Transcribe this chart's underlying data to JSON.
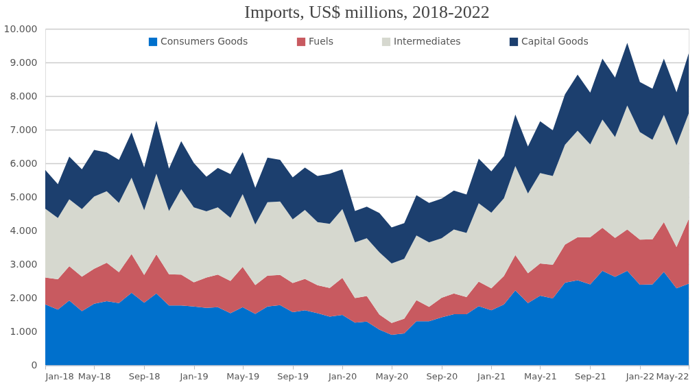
{
  "chart_data": {
    "type": "area",
    "title": "Imports, US$ millions, 2018-2022",
    "stacked": true,
    "x": [
      "2018-01",
      "2018-02",
      "2018-03",
      "2018-04",
      "2018-05",
      "2018-06",
      "2018-07",
      "2018-08",
      "2018-09",
      "2018-10",
      "2018-11",
      "2018-12",
      "2019-01",
      "2019-02",
      "2019-03",
      "2019-04",
      "2019-05",
      "2019-06",
      "2019-07",
      "2019-08",
      "2019-09",
      "2019-10",
      "2019-11",
      "2019-12",
      "2020-01",
      "2020-02",
      "2020-03",
      "2020-04",
      "2020-05",
      "2020-06",
      "2020-07",
      "2020-08",
      "2020-09",
      "2020-10",
      "2020-11",
      "2020-12",
      "2021-01",
      "2021-02",
      "2021-03",
      "2021-04",
      "2021-05",
      "2021-06",
      "2021-07",
      "2021-08",
      "2021-09",
      "2021-10",
      "2021-11",
      "2021-12",
      "2022-01",
      "2022-02",
      "2022-03",
      "2022-04",
      "2022-05"
    ],
    "series": [
      {
        "name": "Consumers Goods",
        "color": "#0070cc",
        "values": [
          1800,
          1650,
          1920,
          1600,
          1820,
          1900,
          1840,
          2150,
          1850,
          2130,
          1770,
          1770,
          1740,
          1700,
          1720,
          1540,
          1720,
          1520,
          1740,
          1780,
          1570,
          1630,
          1540,
          1440,
          1490,
          1260,
          1290,
          1050,
          900,
          940,
          1300,
          1300,
          1420,
          1510,
          1510,
          1750,
          1630,
          1800,
          2220,
          1840,
          2060,
          1980,
          2450,
          2520,
          2400,
          2800,
          2620,
          2800,
          2390,
          2400,
          2770,
          2280,
          2420
        ]
      },
      {
        "name": "Fuels",
        "color": "#c85a60",
        "values": [
          800,
          900,
          1020,
          1030,
          1040,
          1140,
          920,
          1150,
          830,
          1160,
          930,
          920,
          720,
          900,
          970,
          960,
          1200,
          860,
          920,
          900,
          870,
          930,
          830,
          850,
          1100,
          730,
          760,
          450,
          350,
          440,
          630,
          430,
          580,
          620,
          510,
          730,
          650,
          850,
          1050,
          890,
          960,
          1000,
          1130,
          1280,
          1400,
          1280,
          1160,
          1230,
          1340,
          1340,
          1480,
          1230,
          1920
        ]
      },
      {
        "name": "Intermediates",
        "color": "#d6d8cf",
        "values": [
          2050,
          1820,
          1990,
          2010,
          2150,
          2130,
          2060,
          2270,
          1920,
          2400,
          1880,
          2540,
          2230,
          1970,
          2000,
          1880,
          2160,
          1800,
          2180,
          2180,
          1890,
          2050,
          1880,
          1910,
          2050,
          1660,
          1720,
          1850,
          1770,
          1780,
          1920,
          1920,
          1770,
          1900,
          1910,
          2330,
          2250,
          2310,
          2650,
          2370,
          2690,
          2640,
          2970,
          3170,
          2760,
          3220,
          3000,
          3690,
          3200,
          2960,
          3190,
          3020,
          3140
        ]
      },
      {
        "name": "Capital Goods",
        "color": "#1c3f6e",
        "values": [
          1150,
          1010,
          1270,
          1180,
          1390,
          1150,
          1280,
          1350,
          1280,
          1580,
          1260,
          1430,
          1320,
          1030,
          1170,
          1300,
          1250,
          1090,
          1330,
          1240,
          1250,
          1260,
          1370,
          1490,
          1180,
          930,
          940,
          1170,
          1070,
          1060,
          1200,
          1170,
          1180,
          1160,
          1140,
          1330,
          1230,
          1260,
          1530,
          1400,
          1540,
          1360,
          1500,
          1670,
          1540,
          1810,
          1770,
          1860,
          1490,
          1520,
          1670,
          1580,
          1790
        ]
      }
    ],
    "xlim": [
      "2018-01",
      "2022-05"
    ],
    "xticks": [
      {
        "value": "2018-01",
        "label": "Jan-18"
      },
      {
        "value": "2018-05",
        "label": "May-18"
      },
      {
        "value": "2018-09",
        "label": "Sep-18"
      },
      {
        "value": "2019-01",
        "label": "Jan-19"
      },
      {
        "value": "2019-05",
        "label": "May-19"
      },
      {
        "value": "2019-09",
        "label": "Sep-19"
      },
      {
        "value": "2020-01",
        "label": "Jan-20"
      },
      {
        "value": "2020-05",
        "label": "May-20"
      },
      {
        "value": "2020-09",
        "label": "Sep-20"
      },
      {
        "value": "2021-01",
        "label": "Jan-21"
      },
      {
        "value": "2021-05",
        "label": "May-21"
      },
      {
        "value": "2021-09",
        "label": "Sep-21"
      },
      {
        "value": "2022-01",
        "label": "Jan-22"
      },
      {
        "value": "2022-05",
        "label": "May-22"
      }
    ],
    "ylim": [
      0,
      10000
    ],
    "yticks": [
      {
        "value": 0,
        "label": "0"
      },
      {
        "value": 1000,
        "label": "1.000"
      },
      {
        "value": 2000,
        "label": "2.000"
      },
      {
        "value": 3000,
        "label": "3.000"
      },
      {
        "value": 4000,
        "label": "4.000"
      },
      {
        "value": 5000,
        "label": "5.000"
      },
      {
        "value": 6000,
        "label": "6.000"
      },
      {
        "value": 7000,
        "label": "7.000"
      },
      {
        "value": 8000,
        "label": "8.000"
      },
      {
        "value": 9000,
        "label": "9.000"
      },
      {
        "value": 10000,
        "label": "10.000"
      }
    ],
    "grid": "y",
    "legend": "top"
  }
}
